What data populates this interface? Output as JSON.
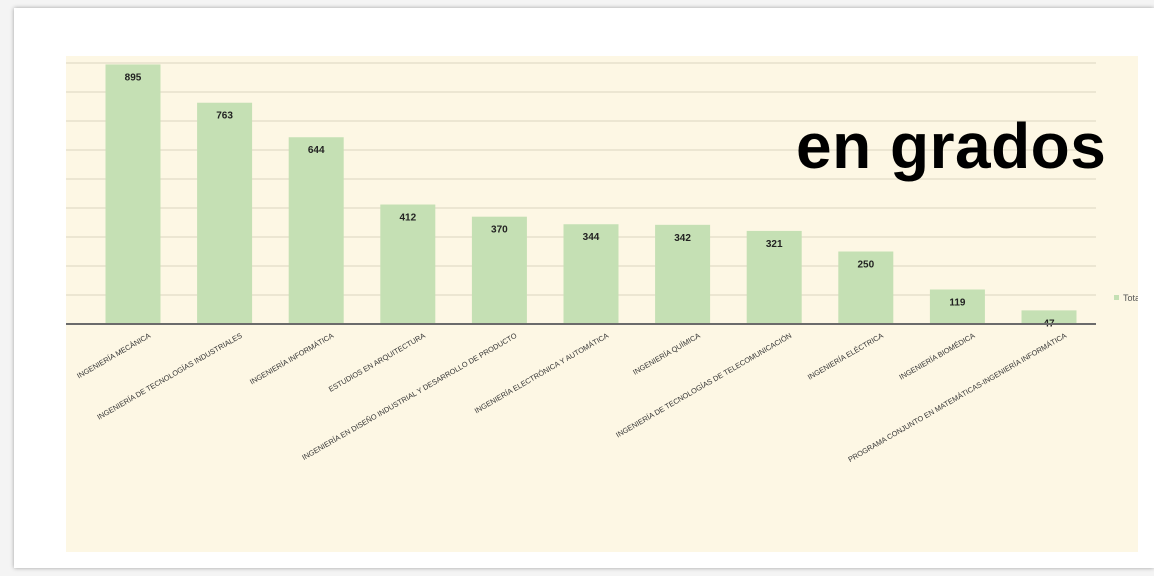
{
  "overlay_title": "en grados",
  "chart_data": {
    "type": "bar",
    "categories": [
      "INGENIERÍA MECÁNICA",
      "INGENIERÍA DE TECNOLOGÍAS INDUSTRIALES",
      "INGENIERÍA INFORMÁTICA",
      "ESTUDIOS EN ARQUITECTURA",
      "INGENIERÍA EN DISEÑO INDUSTRIAL Y DESARROLLO DE PRODUCTO",
      "INGENIERÍA ELECTRÓNICA Y AUTOMÁTICA",
      "INGENIERÍA QUÍMICA",
      "INGENIERÍA DE TECNOLOGÍAS DE TELECOMUNICACIÓN",
      "INGENIERÍA ELÉCTRICA",
      "INGENIERÍA BIOMÉDICA",
      "PROGRAMA CONJUNTO EN MATEMÁTICAS-INGENIERÍA INFORMÁTICA"
    ],
    "series": [
      {
        "name": "Total",
        "values": [
          895,
          763,
          644,
          412,
          370,
          344,
          342,
          321,
          250,
          119,
          47
        ]
      }
    ],
    "ylim": [
      0,
      900
    ],
    "grid": true,
    "legend": "right",
    "bar_color": "#c5e0b4",
    "background_color": "#fdf7e4"
  }
}
